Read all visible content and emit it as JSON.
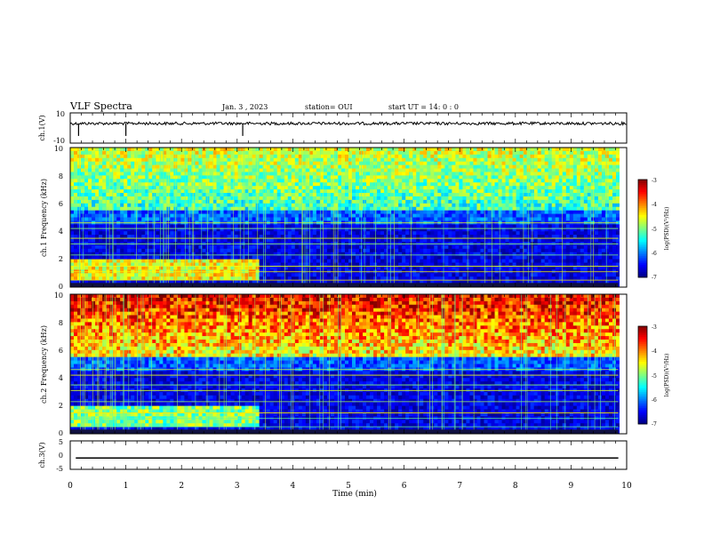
{
  "header": {
    "title": "VLF Spectra",
    "date": "Jan. 3 , 2023",
    "station": "station= OUI",
    "start": "start UT = 14: 0 : 0"
  },
  "chart_data": [
    {
      "type": "line",
      "name": "ch1-waveform",
      "ylabel": "ch.1(V)",
      "ylim": [
        -10,
        10
      ],
      "yticks": [
        "10",
        "-10"
      ],
      "xlim": [
        0,
        10
      ],
      "baseline": 3,
      "spikes_min": [
        0.15,
        1.0,
        3.1
      ]
    },
    {
      "type": "heatmap",
      "name": "ch1-spectrogram",
      "ylabel": "ch.1 Frequency (kHz)",
      "ylim": [
        0,
        10
      ],
      "yticks": [
        "0",
        "2",
        "4",
        "6",
        "8",
        "10"
      ],
      "xlim": [
        0,
        10
      ],
      "band_change_min": 3.4,
      "colorbar": {
        "label": "log(PSD)(V²/Hz)",
        "range": [
          -7,
          -3
        ],
        "ticks": [
          "-3",
          "-4",
          "-5",
          "-6",
          "-7"
        ]
      }
    },
    {
      "type": "heatmap",
      "name": "ch2-spectrogram",
      "ylabel": "ch.2 Frequency (kHz)",
      "ylim": [
        0,
        10
      ],
      "yticks": [
        "0",
        "2",
        "4",
        "6",
        "8",
        "10"
      ],
      "xlim": [
        0,
        10
      ],
      "band_change_min": 3.4,
      "colorbar": {
        "label": "log(PSD)(V²/Hz)",
        "range": [
          -7,
          -3
        ],
        "ticks": [
          "-3",
          "-4",
          "-5",
          "-6",
          "-7"
        ]
      }
    },
    {
      "type": "line",
      "name": "ch3-waveform",
      "ylabel": "ch.3(V)",
      "ylim": [
        -5,
        5
      ],
      "yticks": [
        "5",
        "0",
        "-5"
      ],
      "xlim": [
        0,
        10
      ],
      "baseline": -1
    }
  ],
  "xaxis": {
    "label": "Time (min)",
    "ticks": [
      "0",
      "1",
      "2",
      "3",
      "4",
      "5",
      "6",
      "7",
      "8",
      "9",
      "10"
    ]
  }
}
